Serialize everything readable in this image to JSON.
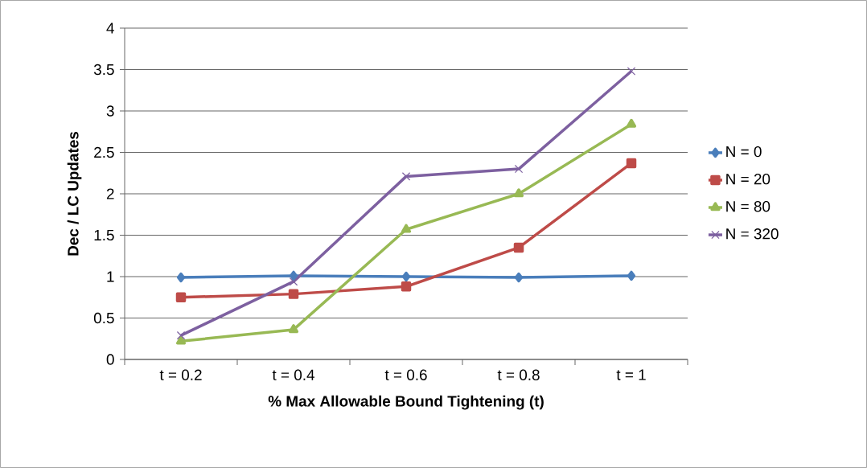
{
  "chart_data": {
    "type": "line",
    "xlabel": "% Max Allowable Bound Tightening (t)",
    "ylabel": "Dec / LC Updates",
    "categories": [
      "t = 0.2",
      "t = 0.4",
      "t = 0.6",
      "t = 0.8",
      "t = 1"
    ],
    "series": [
      {
        "name": "N = 0",
        "color": "#4a7ebb",
        "marker": "diamond",
        "values": [
          0.99,
          1.01,
          1.0,
          0.99,
          1.01
        ]
      },
      {
        "name": "N = 20",
        "color": "#be4b48",
        "marker": "square",
        "values": [
          0.75,
          0.79,
          0.88,
          1.35,
          2.37
        ]
      },
      {
        "name": "N = 80",
        "color": "#98b954",
        "marker": "triangle",
        "values": [
          0.22,
          0.36,
          1.57,
          2.0,
          2.84
        ]
      },
      {
        "name": "N = 320",
        "color": "#7d60a0",
        "marker": "cross",
        "values": [
          0.29,
          0.94,
          2.21,
          2.3,
          3.48
        ]
      }
    ],
    "ylim": [
      0,
      4
    ],
    "yticks": [
      0,
      0.5,
      1,
      1.5,
      2,
      2.5,
      3,
      3.5,
      4
    ],
    "grid": "y",
    "legend": "right",
    "line_style": "solid"
  }
}
